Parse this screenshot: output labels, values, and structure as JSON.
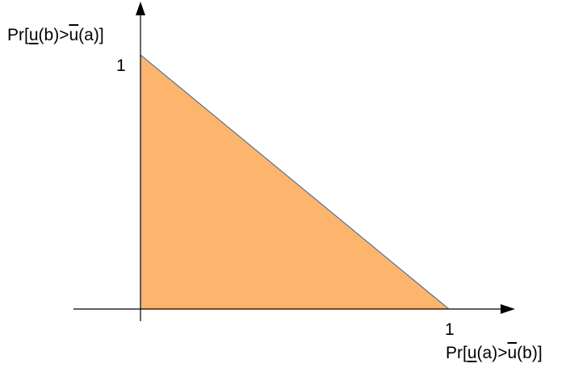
{
  "diagram": {
    "y_axis_label": {
      "prefix": "Pr[",
      "u1": "u",
      "mid": "(b)>",
      "u2": "u",
      "suffix": "(a)]"
    },
    "x_axis_label": {
      "prefix": "Pr[",
      "u1": "u",
      "mid": "(a)>",
      "u2": "u",
      "suffix": "(b)]"
    },
    "y_tick": "1",
    "x_tick": "1",
    "colors": {
      "fill": "#FDB46C",
      "edge": "#3A5F8A",
      "axis": "#000000"
    }
  }
}
